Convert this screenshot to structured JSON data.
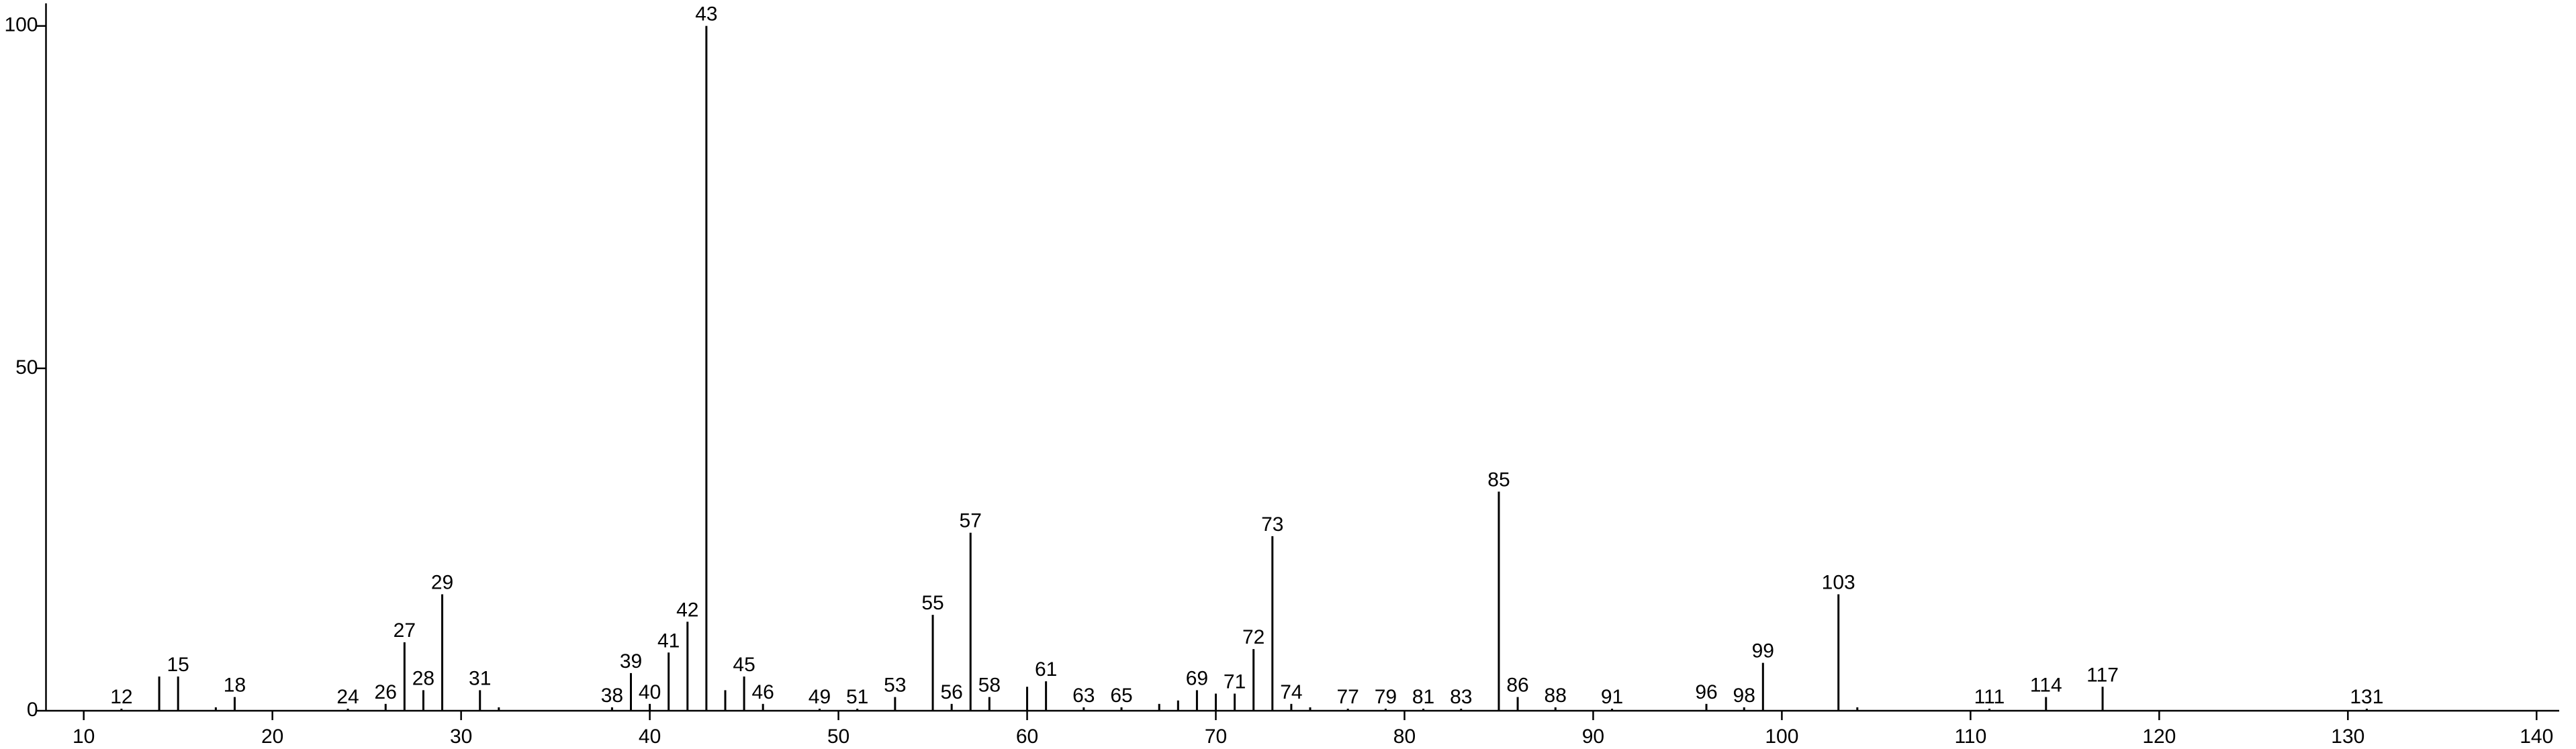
{
  "chart_data": {
    "type": "stem",
    "x": [
      12,
      14,
      15,
      17,
      18,
      24,
      26,
      27,
      28,
      29,
      31,
      32,
      38,
      39,
      40,
      41,
      42,
      43,
      44,
      45,
      46,
      49,
      51,
      53,
      55,
      56,
      57,
      58,
      60,
      61,
      63,
      65,
      67,
      68,
      69,
      70,
      71,
      72,
      73,
      74,
      75,
      77,
      79,
      81,
      83,
      85,
      86,
      88,
      91,
      96,
      98,
      99,
      103,
      104,
      111,
      114,
      117,
      131
    ],
    "values": [
      0.3,
      5,
      5,
      0.5,
      2,
      0.3,
      1,
      10,
      3,
      17,
      3,
      0.5,
      0.5,
      5.5,
      1,
      8.5,
      13,
      100,
      3,
      5,
      1,
      0.3,
      0.3,
      2,
      14,
      1,
      26,
      2,
      3.5,
      4.3,
      0.5,
      0.5,
      1,
      1.5,
      3,
      2.5,
      2.5,
      9,
      25.5,
      1,
      0.5,
      0.3,
      0.3,
      0.3,
      0.3,
      32,
      2,
      0.5,
      0.3,
      1,
      0.5,
      7,
      17,
      0.5,
      0.3,
      2,
      3.5,
      0.3
    ],
    "label_peaks": [
      true,
      false,
      true,
      false,
      true,
      true,
      true,
      true,
      true,
      true,
      true,
      false,
      true,
      true,
      true,
      true,
      true,
      true,
      false,
      true,
      true,
      true,
      true,
      true,
      true,
      true,
      true,
      true,
      false,
      true,
      true,
      true,
      false,
      false,
      true,
      false,
      true,
      true,
      true,
      true,
      false,
      true,
      true,
      true,
      true,
      true,
      true,
      true,
      true,
      true,
      true,
      true,
      true,
      false,
      true,
      true,
      true,
      true
    ],
    "color": "#000000",
    "xlim": [
      8,
      141.2
    ],
    "ylim": [
      0,
      103.3
    ],
    "xticks": [
      10,
      20,
      30,
      40,
      50,
      60,
      70,
      80,
      90,
      100,
      110,
      120,
      130,
      140
    ],
    "yticks": [
      0,
      50,
      100
    ]
  }
}
